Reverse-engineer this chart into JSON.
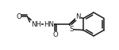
{
  "bg_color": "#ffffff",
  "line_color": "#1a1a1a",
  "line_width": 1.1,
  "font_size": 6.2,
  "layout": {
    "xlim": [
      0,
      150
    ],
    "ylim": [
      0,
      64
    ],
    "figsize": [
      1.5,
      0.64
    ],
    "dpi": 100
  }
}
